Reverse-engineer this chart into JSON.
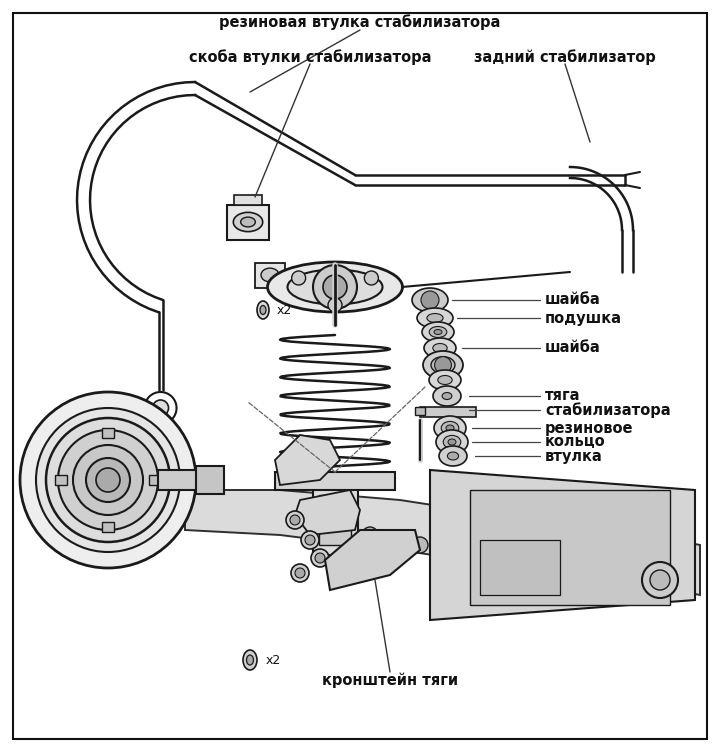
{
  "bg_color": "#ffffff",
  "fig_width": 7.2,
  "fig_height": 7.52,
  "dpi": 100,
  "border_lw": 1.5,
  "lc": "#1a1a1a",
  "labels": {
    "rezinovaya_vtulka": "резиновая втулка стабилизатора",
    "skoba_vtulki": "скоба втулки стабилизатора",
    "zadniy_stabilizator": "задний стабилизатор",
    "shayba1": "шайба",
    "podushka": "подушка",
    "shayba2": "шайба",
    "tyaga1": "тяга",
    "tyaga2": "стабилизатора",
    "rezinovoe1": "резиновое",
    "rezinovoe2": "кольцо",
    "vtulka": "втулка",
    "kronshtein_tyagi": "кронштейн тяги",
    "x2_top": "x2",
    "x2_bot": "x2"
  },
  "fontsize": 10.5,
  "fontsize_small": 9
}
